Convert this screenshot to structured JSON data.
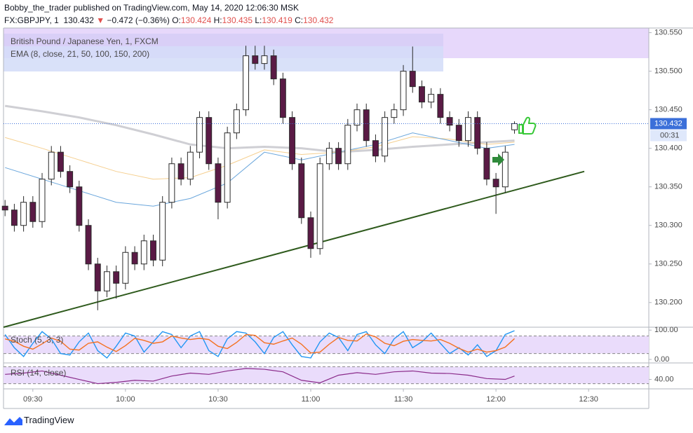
{
  "header": {
    "published": "Bobby_the_trader published on TradingView.com, May 14, 2020 12:06:30 MSK",
    "symbol": "FX:GBPJPY, 1",
    "price": 130.432,
    "change": "−0.472 (−0.36%)",
    "open_label": "O:",
    "open": 130.424,
    "high_label": "H:",
    "high": 130.435,
    "low_label": "L:",
    "low": 130.419,
    "close_label": "C:",
    "close": 130.432
  },
  "chart_data": {
    "type": "candlestick",
    "title": "British Pound / Japanese Yen, 1, FXCM",
    "indicator_label": "EMA (8, close, 21, 50, 100, 150, 200)",
    "x": [
      561,
      564,
      567,
      570,
      573,
      576,
      579,
      582,
      585,
      588,
      591,
      594,
      597,
      600,
      603,
      606,
      609,
      612,
      615,
      618,
      621,
      624,
      627,
      630,
      633,
      636,
      639,
      642,
      645,
      648,
      651,
      654,
      657,
      660,
      663,
      666,
      669,
      672,
      675,
      678,
      681,
      684,
      687,
      690,
      693,
      696,
      699,
      702,
      705,
      708,
      711,
      714,
      717,
      720,
      723,
      726
    ],
    "open": [
      130.325,
      130.32,
      130.3,
      130.33,
      130.305,
      130.36,
      130.395,
      130.37,
      130.35,
      130.3,
      130.25,
      130.215,
      130.24,
      130.225,
      130.265,
      130.25,
      130.28,
      130.255,
      130.33,
      130.38,
      130.36,
      130.395,
      130.44,
      130.38,
      130.33,
      130.42,
      130.45,
      130.52,
      130.51,
      130.52,
      130.49,
      130.44,
      130.38,
      130.31,
      130.27,
      130.38,
      130.4,
      130.38,
      130.43,
      130.45,
      130.41,
      130.39,
      130.44,
      130.45,
      130.5,
      130.48,
      130.46,
      130.47,
      130.44,
      130.43,
      130.41,
      130.44,
      130.4,
      130.36,
      130.35,
      130.424
    ],
    "high": [
      130.333,
      130.328,
      130.338,
      130.338,
      130.368,
      130.403,
      130.403,
      130.378,
      130.358,
      130.308,
      130.258,
      130.248,
      130.248,
      130.273,
      130.273,
      130.288,
      130.288,
      130.338,
      130.388,
      130.388,
      130.403,
      130.448,
      130.448,
      130.388,
      130.428,
      130.458,
      130.533,
      130.533,
      130.533,
      130.528,
      130.498,
      130.448,
      130.388,
      130.318,
      130.388,
      130.408,
      130.408,
      130.438,
      130.458,
      130.458,
      130.418,
      130.448,
      130.458,
      130.508,
      130.532,
      130.488,
      130.478,
      130.478,
      130.448,
      130.438,
      130.448,
      130.448,
      130.408,
      130.368,
      130.403,
      130.435
    ],
    "low": [
      130.312,
      130.292,
      130.292,
      130.297,
      130.297,
      130.352,
      130.362,
      130.342,
      130.292,
      130.242,
      130.19,
      130.207,
      130.205,
      130.217,
      130.242,
      130.242,
      130.247,
      130.247,
      130.322,
      130.352,
      130.352,
      130.387,
      130.372,
      130.308,
      130.322,
      130.412,
      130.442,
      130.502,
      130.502,
      130.482,
      130.432,
      130.372,
      130.302,
      130.258,
      130.262,
      130.372,
      130.372,
      130.372,
      130.422,
      130.402,
      130.382,
      130.382,
      130.432,
      130.442,
      130.472,
      130.452,
      130.452,
      130.432,
      130.422,
      130.402,
      130.402,
      130.392,
      130.352,
      130.315,
      130.342,
      130.419
    ],
    "close": [
      130.32,
      130.3,
      130.33,
      130.305,
      130.36,
      130.395,
      130.37,
      130.35,
      130.3,
      130.25,
      130.215,
      130.24,
      130.225,
      130.265,
      130.25,
      130.28,
      130.255,
      130.33,
      130.38,
      130.36,
      130.395,
      130.44,
      130.38,
      130.33,
      130.42,
      130.45,
      130.52,
      130.51,
      130.52,
      130.49,
      130.44,
      130.38,
      130.31,
      130.27,
      130.38,
      130.4,
      130.38,
      130.43,
      130.45,
      130.41,
      130.39,
      130.44,
      130.45,
      130.5,
      130.48,
      130.46,
      130.47,
      130.44,
      130.43,
      130.41,
      130.44,
      130.4,
      130.36,
      130.35,
      130.395,
      130.432
    ],
    "up_color": "#ffffff",
    "down_color": "#5a1a45",
    "xlim": [
      560.5,
      769.5
    ],
    "xticks": [
      {
        "value": 570,
        "label": "09:30"
      },
      {
        "value": 600,
        "label": "10:00"
      },
      {
        "value": 630,
        "label": "10:30"
      },
      {
        "value": 660,
        "label": "11:00"
      },
      {
        "value": 690,
        "label": "11:30"
      },
      {
        "value": 720,
        "label": "12:00"
      },
      {
        "value": 750,
        "label": "12:30"
      }
    ],
    "ylim": [
      130.168,
      130.556
    ],
    "yticks": [
      {
        "value": 130.2,
        "label": "130.200"
      },
      {
        "value": 130.25,
        "label": "130.250"
      },
      {
        "value": 130.3,
        "label": "130.300"
      },
      {
        "value": 130.35,
        "label": "130.350"
      },
      {
        "value": 130.4,
        "label": "130.400"
      },
      {
        "value": 130.45,
        "label": "130.450"
      },
      {
        "value": 130.5,
        "label": "130.500"
      },
      {
        "value": 130.55,
        "label": "130.550"
      }
    ],
    "last_price": 130.432,
    "countdown": "00:31",
    "ema": {
      "x": [
        561,
        573,
        585,
        597,
        609,
        621,
        633,
        645,
        657,
        669,
        681,
        693,
        705,
        717,
        726
      ],
      "series": [
        {
          "color": "#cfcfd4",
          "values": [
            130.455,
            130.448,
            130.44,
            130.43,
            130.418,
            130.405,
            130.4,
            130.402,
            130.4,
            130.395,
            130.398,
            130.402,
            130.405,
            130.408,
            130.41
          ]
        },
        {
          "color": "#f5cf8f",
          "values": [
            130.414,
            130.4,
            130.385,
            130.37,
            130.36,
            130.362,
            130.378,
            130.398,
            130.392,
            130.395,
            130.402,
            130.415,
            130.412,
            130.405,
            130.408
          ]
        },
        {
          "color": "#6aa6dc",
          "values": [
            130.375,
            130.36,
            130.345,
            130.33,
            130.325,
            130.335,
            130.355,
            130.395,
            130.385,
            130.395,
            130.405,
            130.42,
            130.41,
            130.4,
            130.405
          ]
        }
      ]
    },
    "trend_line": {
      "color": "#2e5a1c",
      "x": [
        560.5,
        748.6
      ],
      "y": [
        130.168,
        130.37
      ]
    },
    "stoch": {
      "label": "Stoch (5, 3, 3)",
      "ylim": [
        -12,
        110
      ],
      "yticks": [
        {
          "value": 100,
          "label": "100.00"
        },
        {
          "value": 0,
          "label": "0.00"
        }
      ],
      "bands": [
        80,
        20
      ],
      "series": [
        {
          "color": "#2196f3",
          "values": [
            85,
            40,
            10,
            55,
            95,
            70,
            20,
            15,
            60,
            90,
            30,
            5,
            45,
            90,
            80,
            25,
            60,
            95,
            85,
            40,
            80,
            95,
            30,
            10,
            70,
            95,
            90,
            60,
            20,
            75,
            95,
            50,
            10,
            5,
            60,
            90,
            75,
            30,
            85,
            95,
            50,
            20,
            70,
            95,
            40,
            60,
            90,
            55,
            20,
            40,
            15,
            50,
            10,
            30,
            85,
            98
          ]
        },
        {
          "color": "#f4711f",
          "values": [
            70,
            62,
            45,
            35,
            53,
            73,
            62,
            35,
            32,
            55,
            60,
            42,
            27,
            47,
            72,
            65,
            55,
            60,
            80,
            73,
            68,
            72,
            68,
            45,
            37,
            58,
            85,
            82,
            57,
            52,
            63,
            73,
            52,
            22,
            25,
            52,
            75,
            65,
            63,
            87,
            77,
            55,
            47,
            62,
            68,
            65,
            63,
            68,
            55,
            38,
            25,
            35,
            25,
            30,
            42,
            71
          ]
        }
      ]
    },
    "rsi": {
      "label": "RSI (14, close)",
      "ylim": [
        21,
        79
      ],
      "yticks": [
        {
          "value": 40,
          "label": "40.00"
        }
      ],
      "bands": [
        70,
        30
      ],
      "x": [
        561,
        567,
        573,
        579,
        585,
        591,
        597,
        603,
        609,
        615,
        621,
        627,
        633,
        639,
        645,
        651,
        657,
        663,
        669,
        675,
        681,
        687,
        693,
        699,
        705,
        711,
        717,
        723,
        726
      ],
      "color": "#8a2b8a",
      "values": [
        52,
        55,
        60,
        50,
        40,
        30,
        33,
        38,
        36,
        48,
        55,
        52,
        60,
        66,
        64,
        58,
        38,
        32,
        50,
        56,
        52,
        58,
        60,
        55,
        54,
        50,
        42,
        40,
        48
      ]
    }
  },
  "footer": {
    "brand": "TradingView"
  }
}
